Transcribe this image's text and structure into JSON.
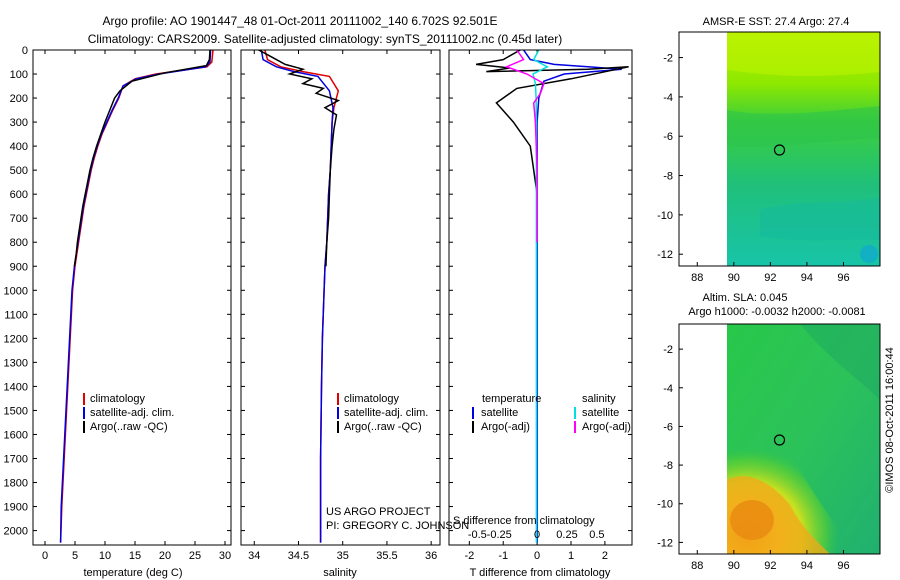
{
  "header": {
    "line1": "Argo profile: AO 1901447_48 01-Oct-2011 20111002_140 6.702S 92.501E",
    "line2": "Climatology: CARS2009. Satellite-adjusted climatology: synTS_20111002.nc (0.45d later)"
  },
  "colors": {
    "climatology": "#e00000",
    "satellite": "#0000e0",
    "argo": "#000000",
    "sal_satellite": "#00e0e0",
    "sal_argo": "#ff00ff"
  },
  "chart_data": [
    {
      "type": "line",
      "name": "temperature-profile",
      "xlabel": "temperature (deg C)",
      "xlim": [
        -2,
        31
      ],
      "ylim": [
        0,
        2060
      ],
      "xticks": [
        0,
        5,
        10,
        15,
        20,
        25,
        30
      ],
      "yticks": [
        0,
        100,
        200,
        300,
        400,
        500,
        600,
        700,
        800,
        900,
        1000,
        1100,
        1200,
        1300,
        1400,
        1500,
        1600,
        1700,
        1800,
        1900,
        2000
      ],
      "legend": [
        "climatology",
        "satellite-adj. clim.",
        "Argo(..raw -QC)"
      ],
      "series": [
        {
          "name": "climatology",
          "color": "#e00000",
          "x": [
            28.0,
            27.8,
            27.0,
            18.5,
            15.0,
            13.0,
            12.3,
            11.3,
            10.4,
            9.5,
            8.8,
            8.2,
            7.7,
            7.3,
            6.9,
            6.5,
            6.2,
            5.9,
            5.6,
            5.3,
            5.0,
            4.8,
            4.6,
            4.4,
            4.2,
            4.0,
            3.8,
            3.6,
            3.4,
            3.2,
            3.0,
            2.8,
            2.6
          ],
          "y": [
            0,
            50,
            70,
            100,
            120,
            150,
            200,
            250,
            300,
            350,
            400,
            450,
            500,
            550,
            600,
            650,
            700,
            750,
            800,
            850,
            900,
            950,
            1000,
            1100,
            1200,
            1300,
            1400,
            1500,
            1600,
            1700,
            1800,
            1900,
            2050
          ]
        },
        {
          "name": "satellite-adj. clim.",
          "color": "#0000e0",
          "x": [
            27.6,
            27.5,
            26.8,
            19.0,
            15.2,
            13.0,
            12.2,
            11.2,
            10.3,
            9.4,
            8.7,
            8.1,
            7.6,
            7.2,
            6.8,
            6.4,
            6.1,
            5.8,
            5.5,
            5.2,
            4.9,
            4.7,
            4.5,
            4.3,
            4.1,
            3.9,
            3.7,
            3.5,
            3.3,
            3.1,
            2.9,
            2.7,
            2.6
          ],
          "y": [
            0,
            50,
            70,
            100,
            120,
            150,
            200,
            250,
            300,
            350,
            400,
            450,
            500,
            550,
            600,
            650,
            700,
            750,
            800,
            850,
            900,
            950,
            1000,
            1100,
            1200,
            1300,
            1400,
            1500,
            1600,
            1700,
            1800,
            1900,
            2050
          ]
        },
        {
          "name": "Argo(..raw -QC)",
          "color": "#000000",
          "x": [
            27.5,
            27.4,
            26.9,
            20.0,
            14.5,
            12.5,
            11.6,
            10.8,
            10.0,
            9.3,
            8.6,
            8.0,
            7.5,
            7.1,
            6.7,
            6.3,
            6.0,
            5.7,
            5.4,
            5.2,
            4.9
          ],
          "y": [
            0,
            40,
            65,
            95,
            130,
            170,
            200,
            250,
            300,
            350,
            400,
            450,
            500,
            550,
            600,
            650,
            700,
            750,
            800,
            850,
            900
          ]
        }
      ]
    },
    {
      "type": "line",
      "name": "salinity-profile",
      "xlabel": "salinity",
      "xlim": [
        33.85,
        36.1
      ],
      "ylim": [
        0,
        2060
      ],
      "xticks": [
        34,
        34.5,
        35,
        35.5,
        36
      ],
      "legend": [
        "climatology",
        "satellite-adj. clim.",
        "Argo(..raw -QC)"
      ],
      "series": [
        {
          "name": "climatology",
          "color": "#e00000",
          "x": [
            34.12,
            34.15,
            34.3,
            34.55,
            34.85,
            34.95,
            34.9,
            34.88,
            34.87,
            34.86,
            34.84,
            34.83,
            34.82,
            34.8,
            34.79,
            34.77,
            34.76,
            34.75,
            34.75
          ],
          "y": [
            0,
            40,
            70,
            90,
            110,
            170,
            240,
            300,
            400,
            500,
            600,
            700,
            800,
            900,
            1000,
            1200,
            1400,
            1700,
            2050
          ]
        },
        {
          "name": "satellite-adj. clim.",
          "color": "#0000e0",
          "x": [
            34.08,
            34.1,
            34.25,
            34.45,
            34.72,
            34.85,
            34.89,
            34.88,
            34.87,
            34.86,
            34.84,
            34.83,
            34.82,
            34.8,
            34.79,
            34.77,
            34.76,
            34.75,
            34.75
          ],
          "y": [
            0,
            40,
            70,
            90,
            110,
            170,
            240,
            300,
            400,
            500,
            600,
            700,
            800,
            900,
            1000,
            1200,
            1400,
            1700,
            2050
          ]
        },
        {
          "name": "Argo(..raw -QC)",
          "color": "#000000",
          "x": [
            34.05,
            34.2,
            34.35,
            34.55,
            34.4,
            34.65,
            34.55,
            34.78,
            34.7,
            34.95,
            34.8,
            34.93,
            34.9,
            34.88,
            34.86,
            34.85,
            34.84,
            34.82,
            34.81
          ],
          "y": [
            0,
            30,
            60,
            80,
            100,
            120,
            140,
            160,
            180,
            210,
            240,
            270,
            330,
            400,
            500,
            600,
            700,
            800,
            900
          ]
        }
      ]
    },
    {
      "type": "line",
      "name": "difference-profile",
      "xlabel": "T difference from climatology",
      "xlabel_top": "S difference from climatology",
      "xlim": [
        -2.6,
        2.8
      ],
      "ylim": [
        0,
        2060
      ],
      "xticks": [
        -2,
        -1,
        0,
        1,
        2
      ],
      "xticks_s": [
        "-0.5",
        "-0.25",
        "0",
        "0.25",
        "0.5"
      ],
      "legend_t_title": "temperature",
      "legend_s_title": "salinity",
      "legend": [
        "satellite",
        "Argo(-adj)",
        "satellite",
        "Argo(-adj)"
      ],
      "series": [
        {
          "name": "T satellite",
          "color": "#0000e0",
          "x": [
            -0.4,
            -0.2,
            0.5,
            1.5,
            2.5,
            0.8,
            0.2,
            0.05,
            0.0,
            0.0,
            0.0,
            0.0
          ],
          "y": [
            0,
            40,
            60,
            70,
            80,
            100,
            130,
            200,
            300,
            500,
            1000,
            2050
          ]
        },
        {
          "name": "T Argo(-adj)",
          "color": "#000000",
          "x": [
            -0.5,
            -1.0,
            -1.8,
            -0.8,
            -1.5,
            1.5,
            2.7,
            1.0,
            -0.6,
            -1.2,
            -0.7,
            -0.2,
            -0.1,
            0.0
          ],
          "y": [
            0,
            40,
            60,
            75,
            90,
            80,
            70,
            120,
            160,
            220,
            300,
            400,
            500,
            600
          ]
        },
        {
          "name": "S satellite",
          "color": "#00e0e0",
          "x": [
            0.05,
            -0.1,
            0.3,
            -0.12,
            -0.05,
            -0.03,
            -0.02,
            -0.02,
            -0.02,
            -0.02,
            -0.02
          ],
          "y": [
            0,
            40,
            70,
            100,
            140,
            200,
            300,
            500,
            1000,
            1500,
            2050
          ]
        },
        {
          "name": "S Argo(-adj)",
          "color": "#ff00ff",
          "x": [
            -0.6,
            -0.4,
            -0.9,
            -0.3,
            0.2,
            0.1,
            -0.1,
            -0.05,
            0.0,
            0.0
          ],
          "y": [
            0,
            40,
            70,
            100,
            140,
            180,
            220,
            300,
            500,
            800
          ]
        }
      ]
    },
    {
      "type": "heatmap",
      "name": "amsr-sst-map",
      "title": "AMSR-E SST: 27.4  Argo: 27.4",
      "xlim": [
        87,
        98
      ],
      "ylim": [
        -12.6,
        -0.7
      ],
      "xticks": [
        88,
        90,
        92,
        94,
        96
      ],
      "yticks": [
        -2,
        -4,
        -6,
        -8,
        -10,
        -12
      ],
      "data_lon_min": 90,
      "float_position": {
        "lon": 92.5,
        "lat": -6.7
      }
    },
    {
      "type": "heatmap",
      "name": "altimetry-sla-map",
      "title": "Altim. SLA: 0.045",
      "subtitle": "Argo h1000: -0.0032 h2000: -0.0081",
      "xlim": [
        87,
        98
      ],
      "ylim": [
        -12.6,
        -0.7
      ],
      "xticks": [
        88,
        90,
        92,
        94,
        96
      ],
      "yticks": [
        -2,
        -4,
        -6,
        -8,
        -10,
        -12
      ],
      "data_lon_min": 90,
      "float_position": {
        "lon": 92.5,
        "lat": -6.7
      }
    }
  ],
  "panels": {
    "temp": {
      "xlabel": "temperature (deg C)",
      "legend": [
        "climatology",
        "satellite-adj. clim.",
        "Argo(..raw -QC)"
      ]
    },
    "sal": {
      "xlabel": "salinity",
      "legend": [
        "climatology",
        "satellite-adj. clim.",
        "Argo(..raw -QC)"
      ],
      "project_line1": "US ARGO PROJECT",
      "project_line2": "PI: GREGORY C. JOHNSON"
    },
    "diff": {
      "xlabel": "T difference from climatology",
      "xlabel_top": "S difference from climatology",
      "legend_t_title": "temperature",
      "legend_s_title": "salinity",
      "legend_t1": "satellite",
      "legend_t2": "Argo(-adj)",
      "legend_s1": "satellite",
      "legend_s2": "Argo(-adj)"
    },
    "map1": {
      "title": "AMSR-E SST: 27.4  Argo: 27.4"
    },
    "map2": {
      "title": "Altim. SLA: 0.045",
      "subtitle": "Argo h1000: -0.0032 h2000: -0.0081"
    }
  },
  "footer": {
    "stamp": "©IMOS 08-Oct-2011 16:00:44"
  }
}
